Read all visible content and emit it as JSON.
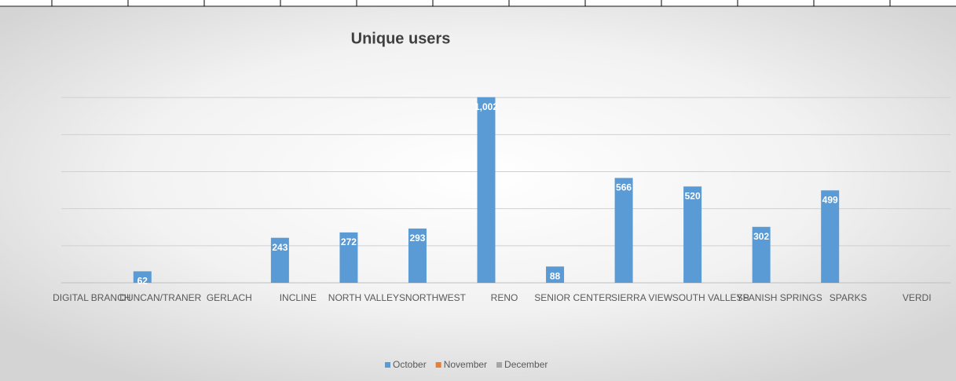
{
  "chart_data": {
    "type": "bar",
    "title": "Unique users",
    "categories": [
      "DIGITAL BRANCH",
      "DUNCAN/TRANER",
      "GERLACH",
      "INCLINE",
      "NORTH VALLEYS",
      "NORTHWEST",
      "RENO",
      "SENIOR CENTER",
      "SIERRA VIEW",
      "SOUTH VALLEYS",
      "SPANISH SPRINGS",
      "SPARKS",
      "VERDI"
    ],
    "series": [
      {
        "name": "October",
        "color": "#5b9bd5",
        "values": [
          null,
          62,
          null,
          243,
          272,
          293,
          1002,
          88,
          566,
          520,
          302,
          499,
          null
        ],
        "value_labels": [
          null,
          "62",
          null,
          "243",
          "272",
          "293",
          "1,002",
          "88",
          "566",
          "520",
          "302",
          "499",
          null
        ]
      },
      {
        "name": "November",
        "color": "#ed7d31",
        "values": [
          null,
          null,
          null,
          null,
          null,
          null,
          null,
          null,
          null,
          null,
          null,
          null,
          null
        ]
      },
      {
        "name": "December",
        "color": "#a5a5a5",
        "values": [
          null,
          null,
          null,
          null,
          null,
          null,
          null,
          null,
          null,
          null,
          null,
          null,
          null
        ]
      }
    ],
    "ylim": [
      0,
      1200
    ],
    "yticks": [
      0,
      200,
      400,
      600,
      800,
      1000
    ],
    "grid": true,
    "legend": "bottom"
  }
}
